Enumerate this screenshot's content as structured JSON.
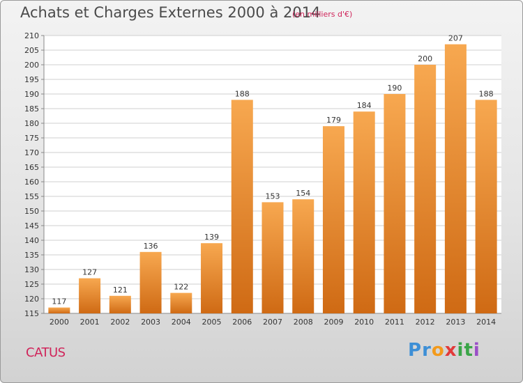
{
  "header": {
    "title": "Achats et Charges Externes 2000 à 2014",
    "subtitle": "(en milliers d'€)"
  },
  "footer": {
    "commune": "CATUS",
    "logo_text": "Proxiti"
  },
  "colors": {
    "bar_light": "#f7a850",
    "bar_dark": "#cf6a14",
    "accent": "#d0245a"
  },
  "chart_data": {
    "type": "bar",
    "title": "Achats et Charges Externes 2000 à 2014",
    "subtitle": "(en milliers d'€)",
    "xlabel": "",
    "ylabel": "",
    "categories": [
      "2000",
      "2001",
      "2002",
      "2003",
      "2004",
      "2005",
      "2006",
      "2007",
      "2008",
      "2009",
      "2010",
      "2011",
      "2012",
      "2013",
      "2014"
    ],
    "values": [
      117,
      127,
      121,
      136,
      122,
      139,
      188,
      153,
      154,
      179,
      184,
      190,
      200,
      207,
      188
    ],
    "ylim": [
      115,
      210
    ],
    "yticks": [
      115,
      120,
      125,
      130,
      135,
      140,
      145,
      150,
      155,
      160,
      165,
      170,
      175,
      180,
      185,
      190,
      195,
      200,
      205,
      210
    ],
    "grid": true,
    "data_labels": true
  }
}
